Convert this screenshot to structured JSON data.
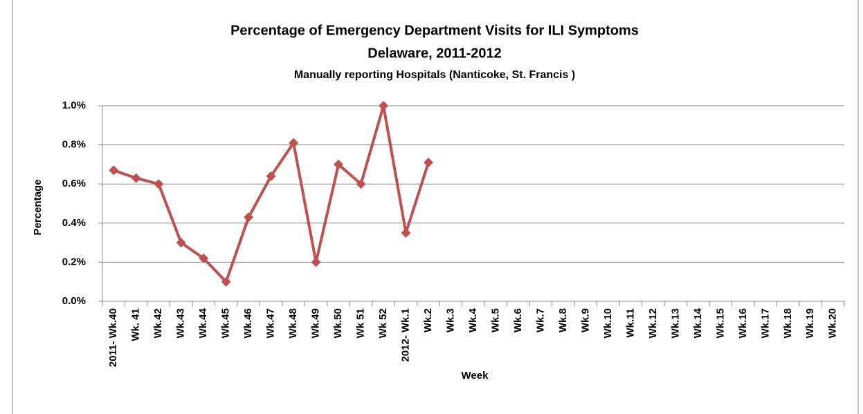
{
  "chart_data": {
    "type": "line",
    "title": "Percentage of Emergency Department Visits for ILI Symptoms",
    "subtitle": "Delaware, 2011-2012",
    "subtitle2": "Manually  reporting Hospitals  (Nanticoke,  St. Francis )",
    "x_label": "Week",
    "y_label": "Percentage",
    "categories": [
      "2011- Wk.40",
      "Wk. 41",
      "Wk.42",
      "Wk.43",
      "Wk.44",
      "Wk.45",
      "Wk.46",
      "Wk.47",
      "Wk.48",
      "Wk.49",
      "Wk.50",
      "Wk 51",
      "Wk 52",
      "2012- Wk.1",
      "Wk.2",
      "Wk.3",
      "Wk.4",
      "Wk.5",
      "Wk.6",
      "Wk.7",
      "Wk.8",
      "Wk.9",
      "Wk.10",
      "Wk.11",
      "Wk.12",
      "Wk.13",
      "Wk.14",
      "Wk.15",
      "Wk.16",
      "Wk.17",
      "Wk.18",
      "Wk.19",
      "Wk.20"
    ],
    "values": [
      0.67,
      0.63,
      0.6,
      0.3,
      0.22,
      0.1,
      0.43,
      0.64,
      0.81,
      0.2,
      0.7,
      0.6,
      1.0,
      0.35,
      0.71,
      null,
      null,
      null,
      null,
      null,
      null,
      null,
      null,
      null,
      null,
      null,
      null,
      null,
      null,
      null,
      null,
      null,
      null
    ],
    "color": "#c0504d",
    "ylim": [
      0,
      1
    ],
    "yticks": [
      {
        "value": 0,
        "label": "0.0%"
      },
      {
        "value": 0.2,
        "label": "0.2%"
      },
      {
        "value": 0.4,
        "label": "0.4%"
      },
      {
        "value": 0.6,
        "label": "0.6%"
      },
      {
        "value": 0.8,
        "label": "0.8%"
      },
      {
        "value": 1,
        "label": "1.0%"
      }
    ],
    "grid": true
  }
}
